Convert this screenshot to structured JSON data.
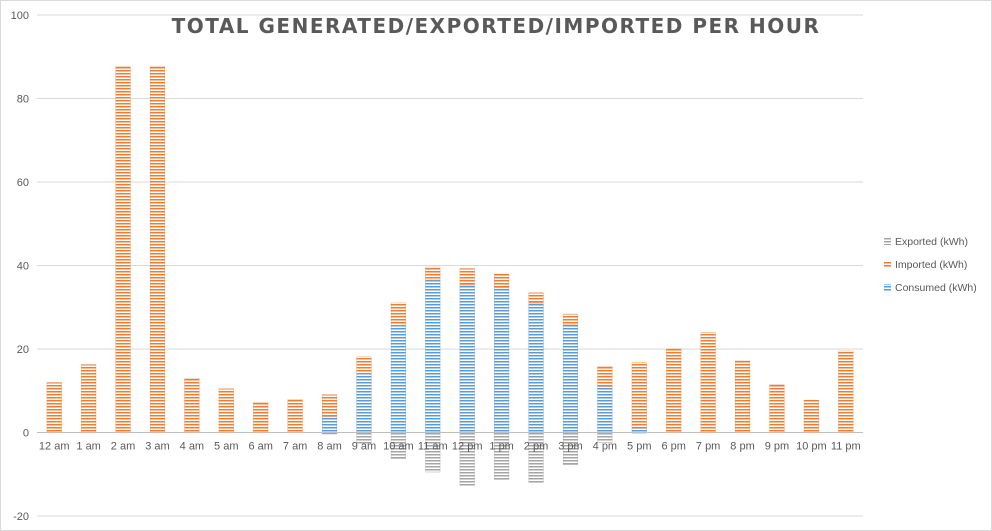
{
  "chart_data": {
    "type": "bar",
    "stacked": true,
    "title": "TOTAL GENERATED/EXPORTED/IMPORTED PER HOUR",
    "xlabel": "",
    "ylabel": "",
    "ylim": [
      -20,
      100
    ],
    "yticks": [
      -20,
      0,
      20,
      40,
      60,
      80,
      100
    ],
    "grid": true,
    "legend_position": "right",
    "categories": [
      "12 am",
      "1 am",
      "2 am",
      "3 am",
      "4 am",
      "5 am",
      "6 am",
      "7 am",
      "8 am",
      "9 am",
      "10 am",
      "11 am",
      "12 pm",
      "1 pm",
      "2 pm",
      "3 pm",
      "4 pm",
      "5 pm",
      "6 pm",
      "7 pm",
      "8 pm",
      "9 pm",
      "10 pm",
      "11 pm"
    ],
    "series": [
      {
        "name": "Consumed (kWh)",
        "color": "#5b9bd5",
        "values": [
          0,
          0,
          0,
          0,
          0,
          0,
          0,
          0,
          3.8,
          14,
          25.5,
          36.5,
          35.3,
          34.7,
          31,
          25.8,
          11,
          1,
          0,
          0,
          0,
          0,
          0,
          0
        ]
      },
      {
        "name": "Imported (kWh)",
        "color": "#ed7d31",
        "values": [
          12,
          16.3,
          87.7,
          87.8,
          13,
          10.5,
          7.3,
          8,
          5.3,
          4.2,
          5.6,
          3.2,
          4,
          3.3,
          2.5,
          2.6,
          4.9,
          15.8,
          20.1,
          24,
          17.2,
          11.5,
          7.8,
          19.6
        ]
      },
      {
        "name": "Exported (kWh)",
        "color": "#a5a5a5",
        "values": [
          0,
          0,
          0,
          0,
          0,
          0,
          0,
          0,
          -0.4,
          -2.6,
          -6.3,
          -9.5,
          -12.7,
          -11.3,
          -12,
          -7.8,
          -2.4,
          -0.2,
          0,
          0,
          0,
          0,
          0,
          0
        ]
      }
    ]
  }
}
